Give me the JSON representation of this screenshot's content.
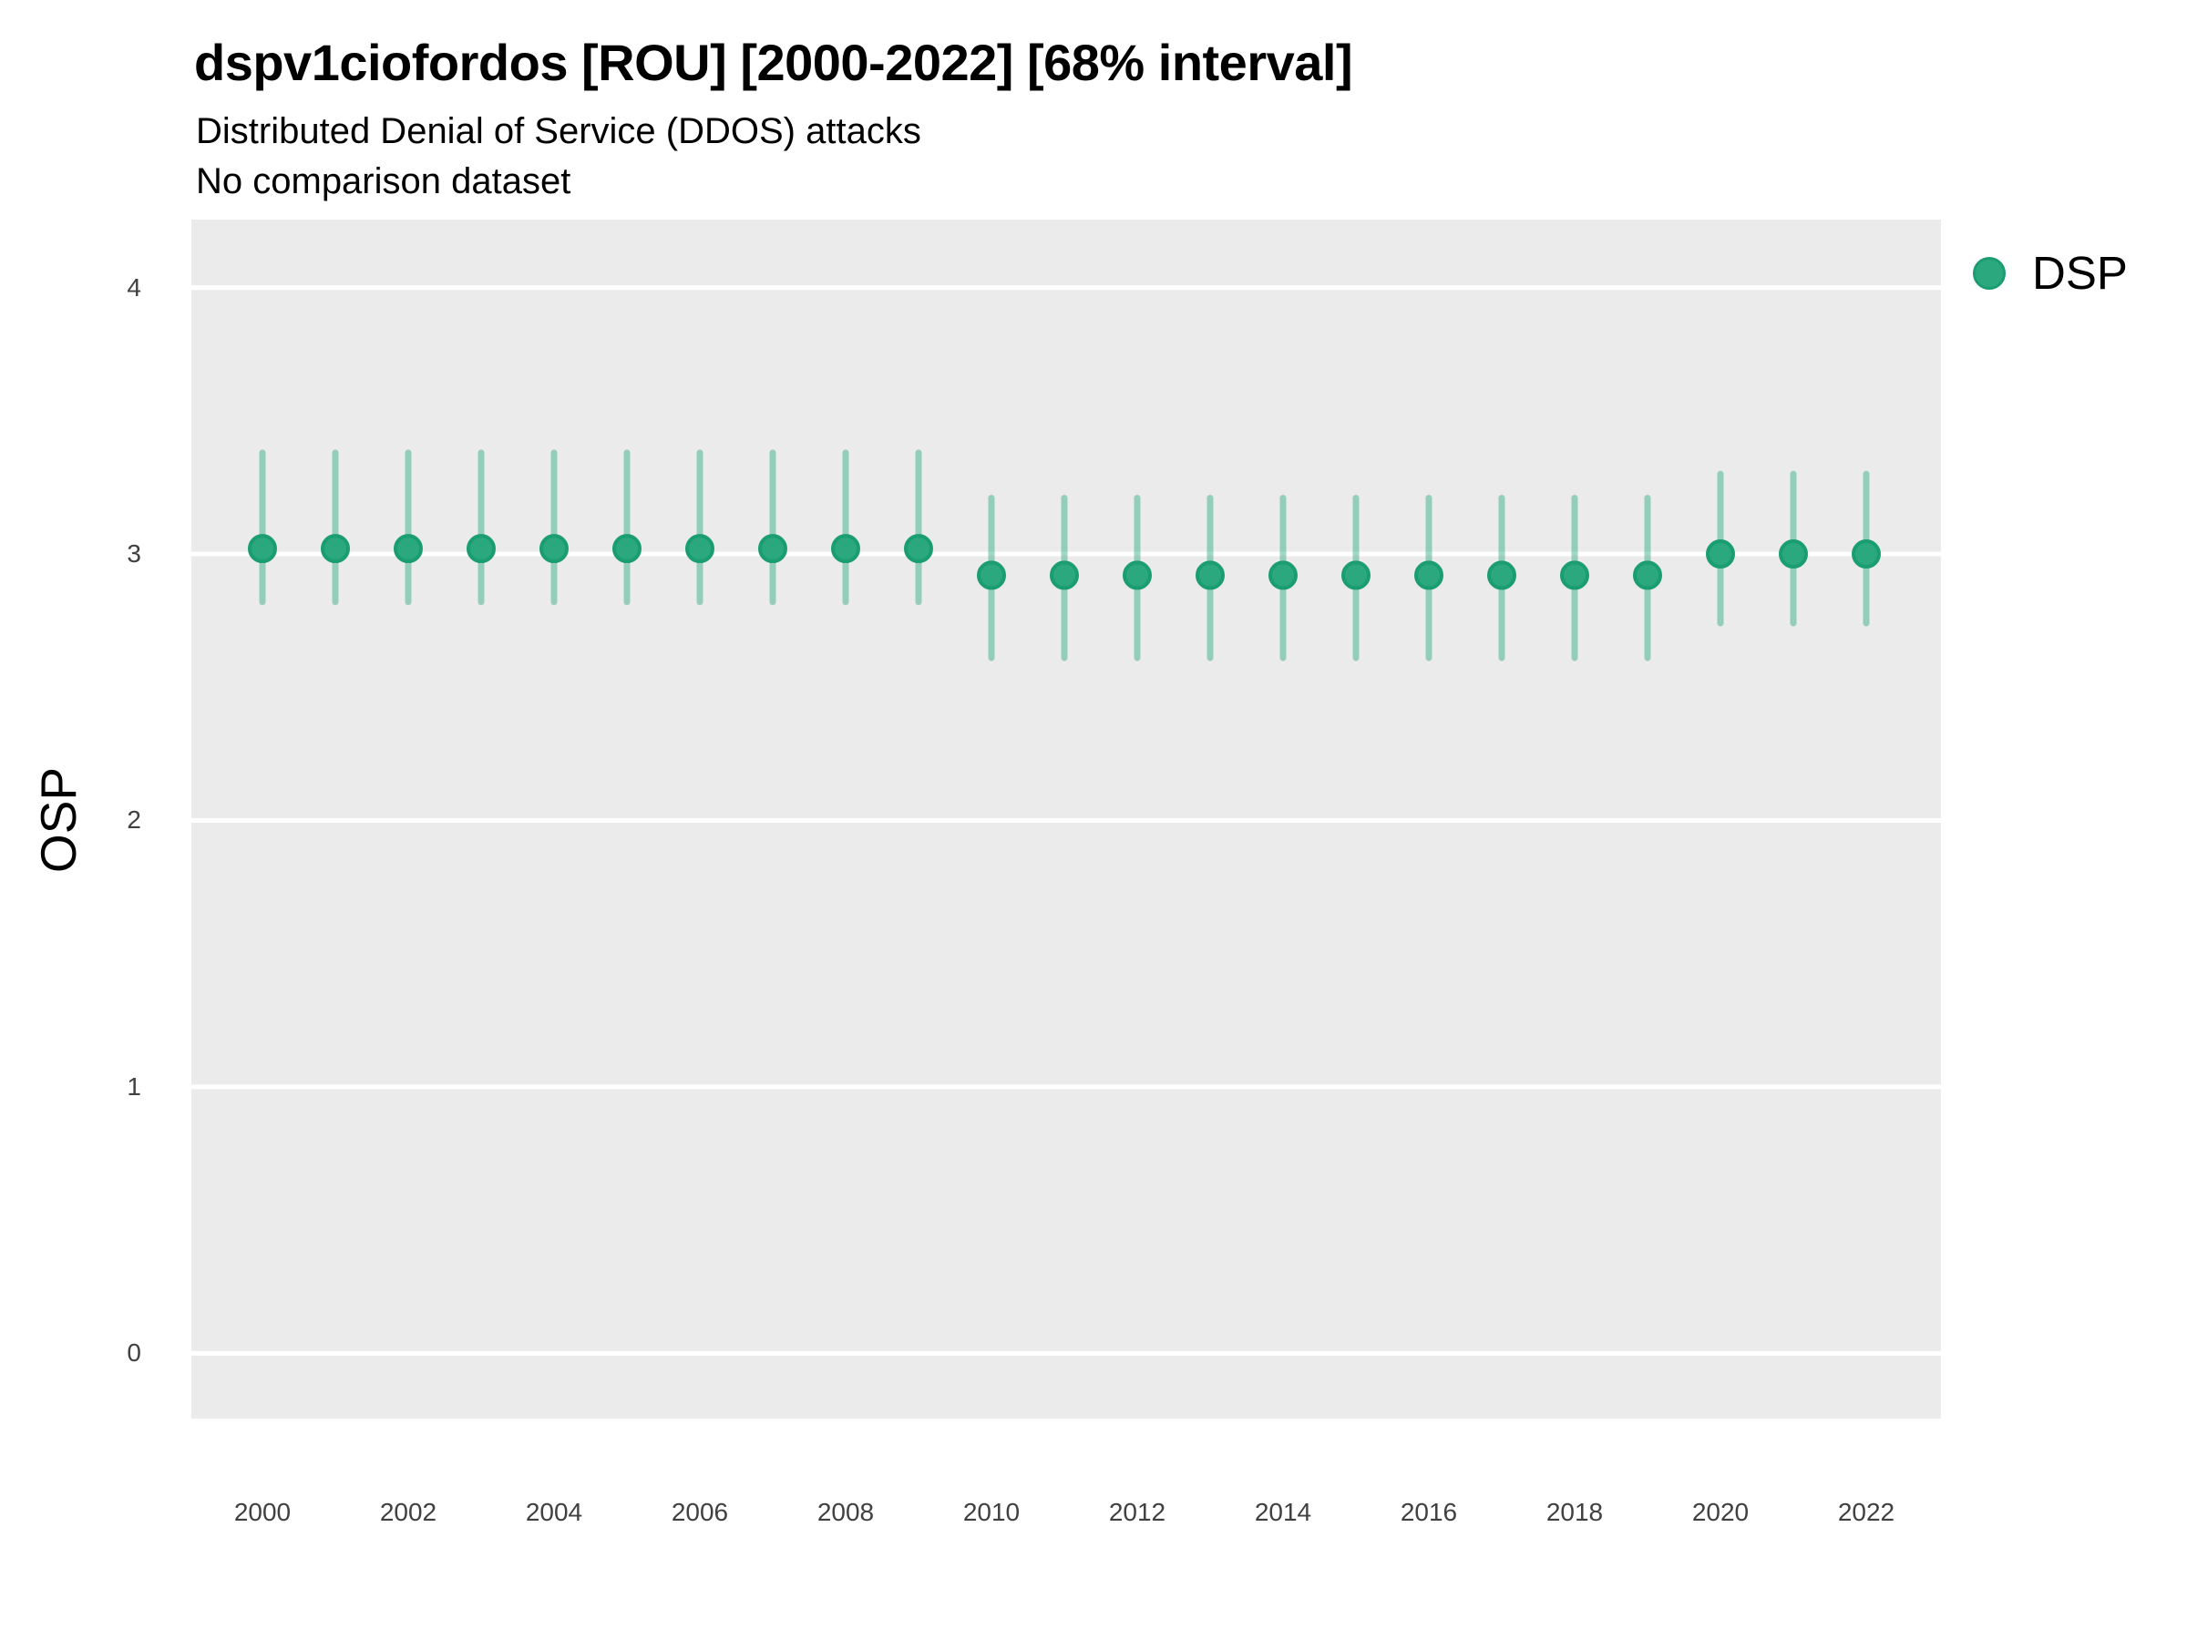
{
  "chart_data": {
    "type": "scatter",
    "title": "dspv1ciofordos [ROU] [2000-2022] [68% interval]",
    "subtitle": "Distributed Denial of Service (DDOS) attacks",
    "note": "No comparison dataset",
    "xlabel": "",
    "ylabel": "OSP",
    "interval": "68%",
    "xlim": [
      1999.025,
      2023.025
    ],
    "ylim": [
      -0.245,
      4.255
    ],
    "x_ticks": [
      2000,
      2002,
      2004,
      2006,
      2008,
      2010,
      2012,
      2014,
      2016,
      2018,
      2020,
      2022
    ],
    "y_ticks": [
      0,
      1,
      2,
      3,
      4
    ],
    "grid": "major-only",
    "colors": {
      "panel_bg": "#EBEBEB",
      "grid": "#FFFFFF",
      "page_bg": "#FFFFFF",
      "axis_text": "#404040"
    },
    "legend": {
      "position": "right",
      "items": [
        {
          "label": "DSP",
          "color": "#2BA87E",
          "edge_color": "#1A9E70"
        }
      ]
    },
    "series": [
      {
        "name": "DSP",
        "point_color": "#2BA87E",
        "point_edge_color": "#1A9E70",
        "interval_color": "#2BA87E",
        "interval_opacity": 0.45,
        "x": [
          2000,
          2001,
          2002,
          2003,
          2004,
          2005,
          2006,
          2007,
          2008,
          2009,
          2010,
          2011,
          2012,
          2013,
          2014,
          2015,
          2016,
          2017,
          2018,
          2019,
          2020,
          2021,
          2022
        ],
        "y": [
          3.02,
          3.02,
          3.02,
          3.02,
          3.02,
          3.02,
          3.02,
          3.02,
          3.02,
          3.02,
          2.92,
          2.92,
          2.92,
          2.92,
          2.92,
          2.92,
          2.92,
          2.92,
          2.92,
          2.92,
          3.0,
          3.0,
          3.0
        ],
        "y_lo": [
          2.82,
          2.82,
          2.82,
          2.82,
          2.82,
          2.82,
          2.82,
          2.82,
          2.82,
          2.82,
          2.61,
          2.61,
          2.61,
          2.61,
          2.61,
          2.61,
          2.61,
          2.61,
          2.61,
          2.61,
          2.74,
          2.74,
          2.74
        ],
        "y_hi": [
          3.38,
          3.38,
          3.38,
          3.38,
          3.38,
          3.38,
          3.38,
          3.38,
          3.38,
          3.38,
          3.21,
          3.21,
          3.21,
          3.21,
          3.21,
          3.21,
          3.21,
          3.21,
          3.21,
          3.21,
          3.3,
          3.3,
          3.3
        ]
      }
    ]
  }
}
